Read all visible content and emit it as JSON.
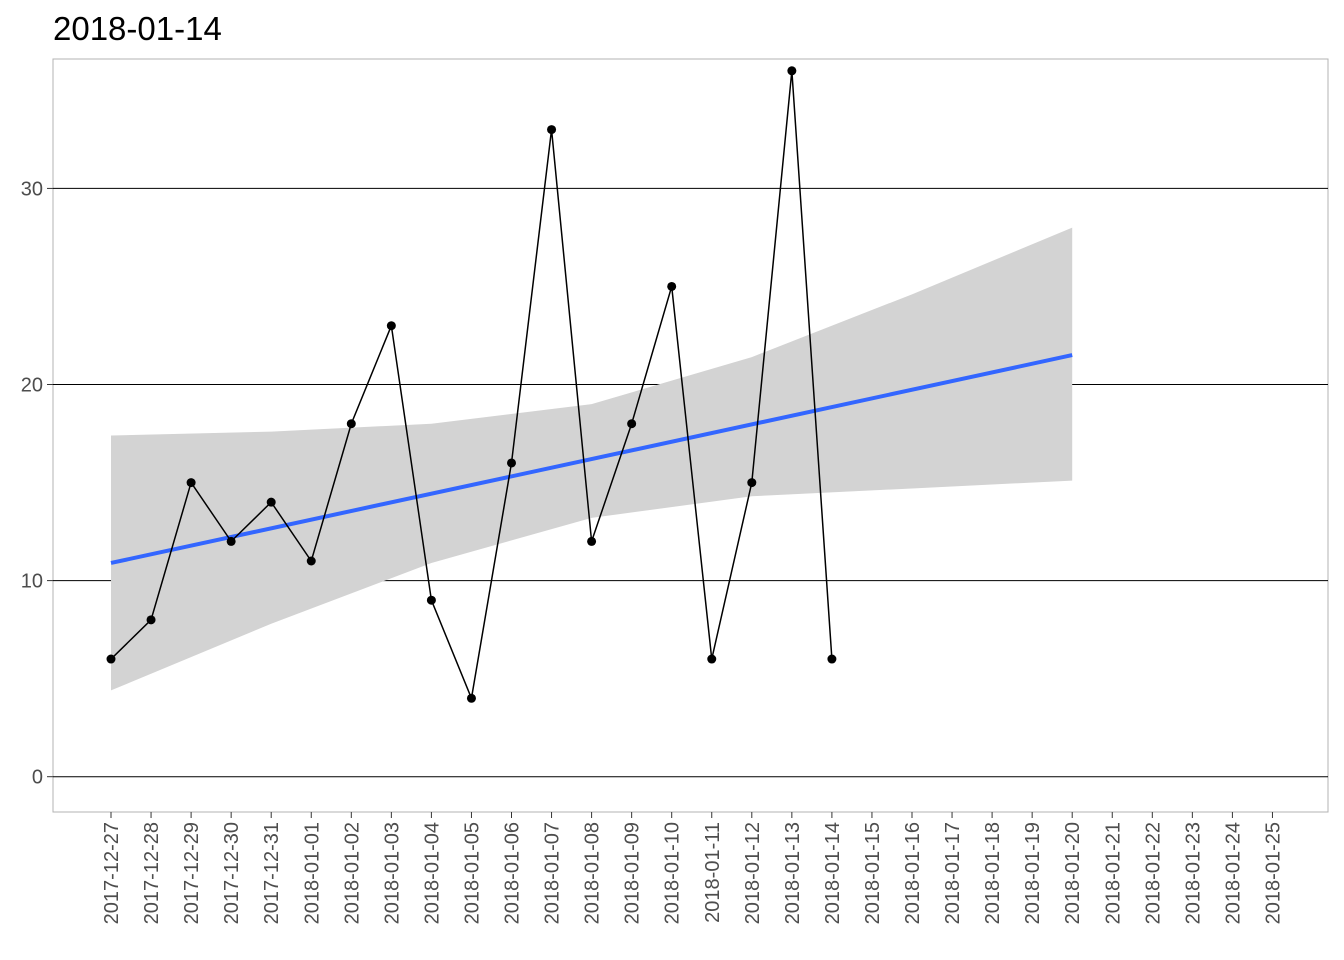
{
  "chart_data": {
    "type": "line",
    "title": "2018-01-14",
    "xlabel": "",
    "ylabel": "",
    "x_ticks": [
      "2017-12-27",
      "2017-12-28",
      "2017-12-29",
      "2017-12-30",
      "2017-12-31",
      "2018-01-01",
      "2018-01-02",
      "2018-01-03",
      "2018-01-04",
      "2018-01-05",
      "2018-01-06",
      "2018-01-07",
      "2018-01-08",
      "2018-01-09",
      "2018-01-10",
      "2018-01-11",
      "2018-01-12",
      "2018-01-13",
      "2018-01-14",
      "2018-01-15",
      "2018-01-16",
      "2018-01-17",
      "2018-01-18",
      "2018-01-19",
      "2018-01-20",
      "2018-01-21",
      "2018-01-22",
      "2018-01-23",
      "2018-01-24",
      "2018-01-25"
    ],
    "y_ticks": [
      0,
      10,
      20,
      30
    ],
    "ylim": [
      -1.8,
      36.6
    ],
    "xlim": [
      "2017-12-26",
      "2018-01-27"
    ],
    "grid": "horizontal major lines",
    "series": [
      {
        "type": "line+points",
        "color": "#000000",
        "x": [
          "2017-12-27",
          "2017-12-28",
          "2017-12-29",
          "2017-12-30",
          "2017-12-31",
          "2018-01-01",
          "2018-01-02",
          "2018-01-03",
          "2018-01-04",
          "2018-01-05",
          "2018-01-06",
          "2018-01-07",
          "2018-01-08",
          "2018-01-09",
          "2018-01-10",
          "2018-01-11",
          "2018-01-12",
          "2018-01-13",
          "2018-01-14"
        ],
        "values": [
          6,
          8,
          15,
          12,
          14,
          11,
          18,
          23,
          9,
          4,
          16,
          33,
          12,
          18,
          25,
          6,
          15,
          36,
          6
        ]
      },
      {
        "type": "linear-trend",
        "color": "#3366FF",
        "x": [
          "2017-12-27",
          "2018-01-20"
        ],
        "values": [
          10.9,
          21.5
        ]
      },
      {
        "type": "confidence-band",
        "color": "#D3D3D3",
        "x": [
          "2017-12-27",
          "2017-12-31",
          "2018-01-04",
          "2018-01-08",
          "2018-01-12",
          "2018-01-16",
          "2018-01-20"
        ],
        "lower": [
          4.4,
          7.8,
          10.9,
          13.2,
          14.3,
          14.7,
          15.1
        ],
        "upper": [
          17.4,
          17.6,
          18.0,
          19.0,
          21.4,
          24.6,
          28.0
        ]
      }
    ]
  }
}
